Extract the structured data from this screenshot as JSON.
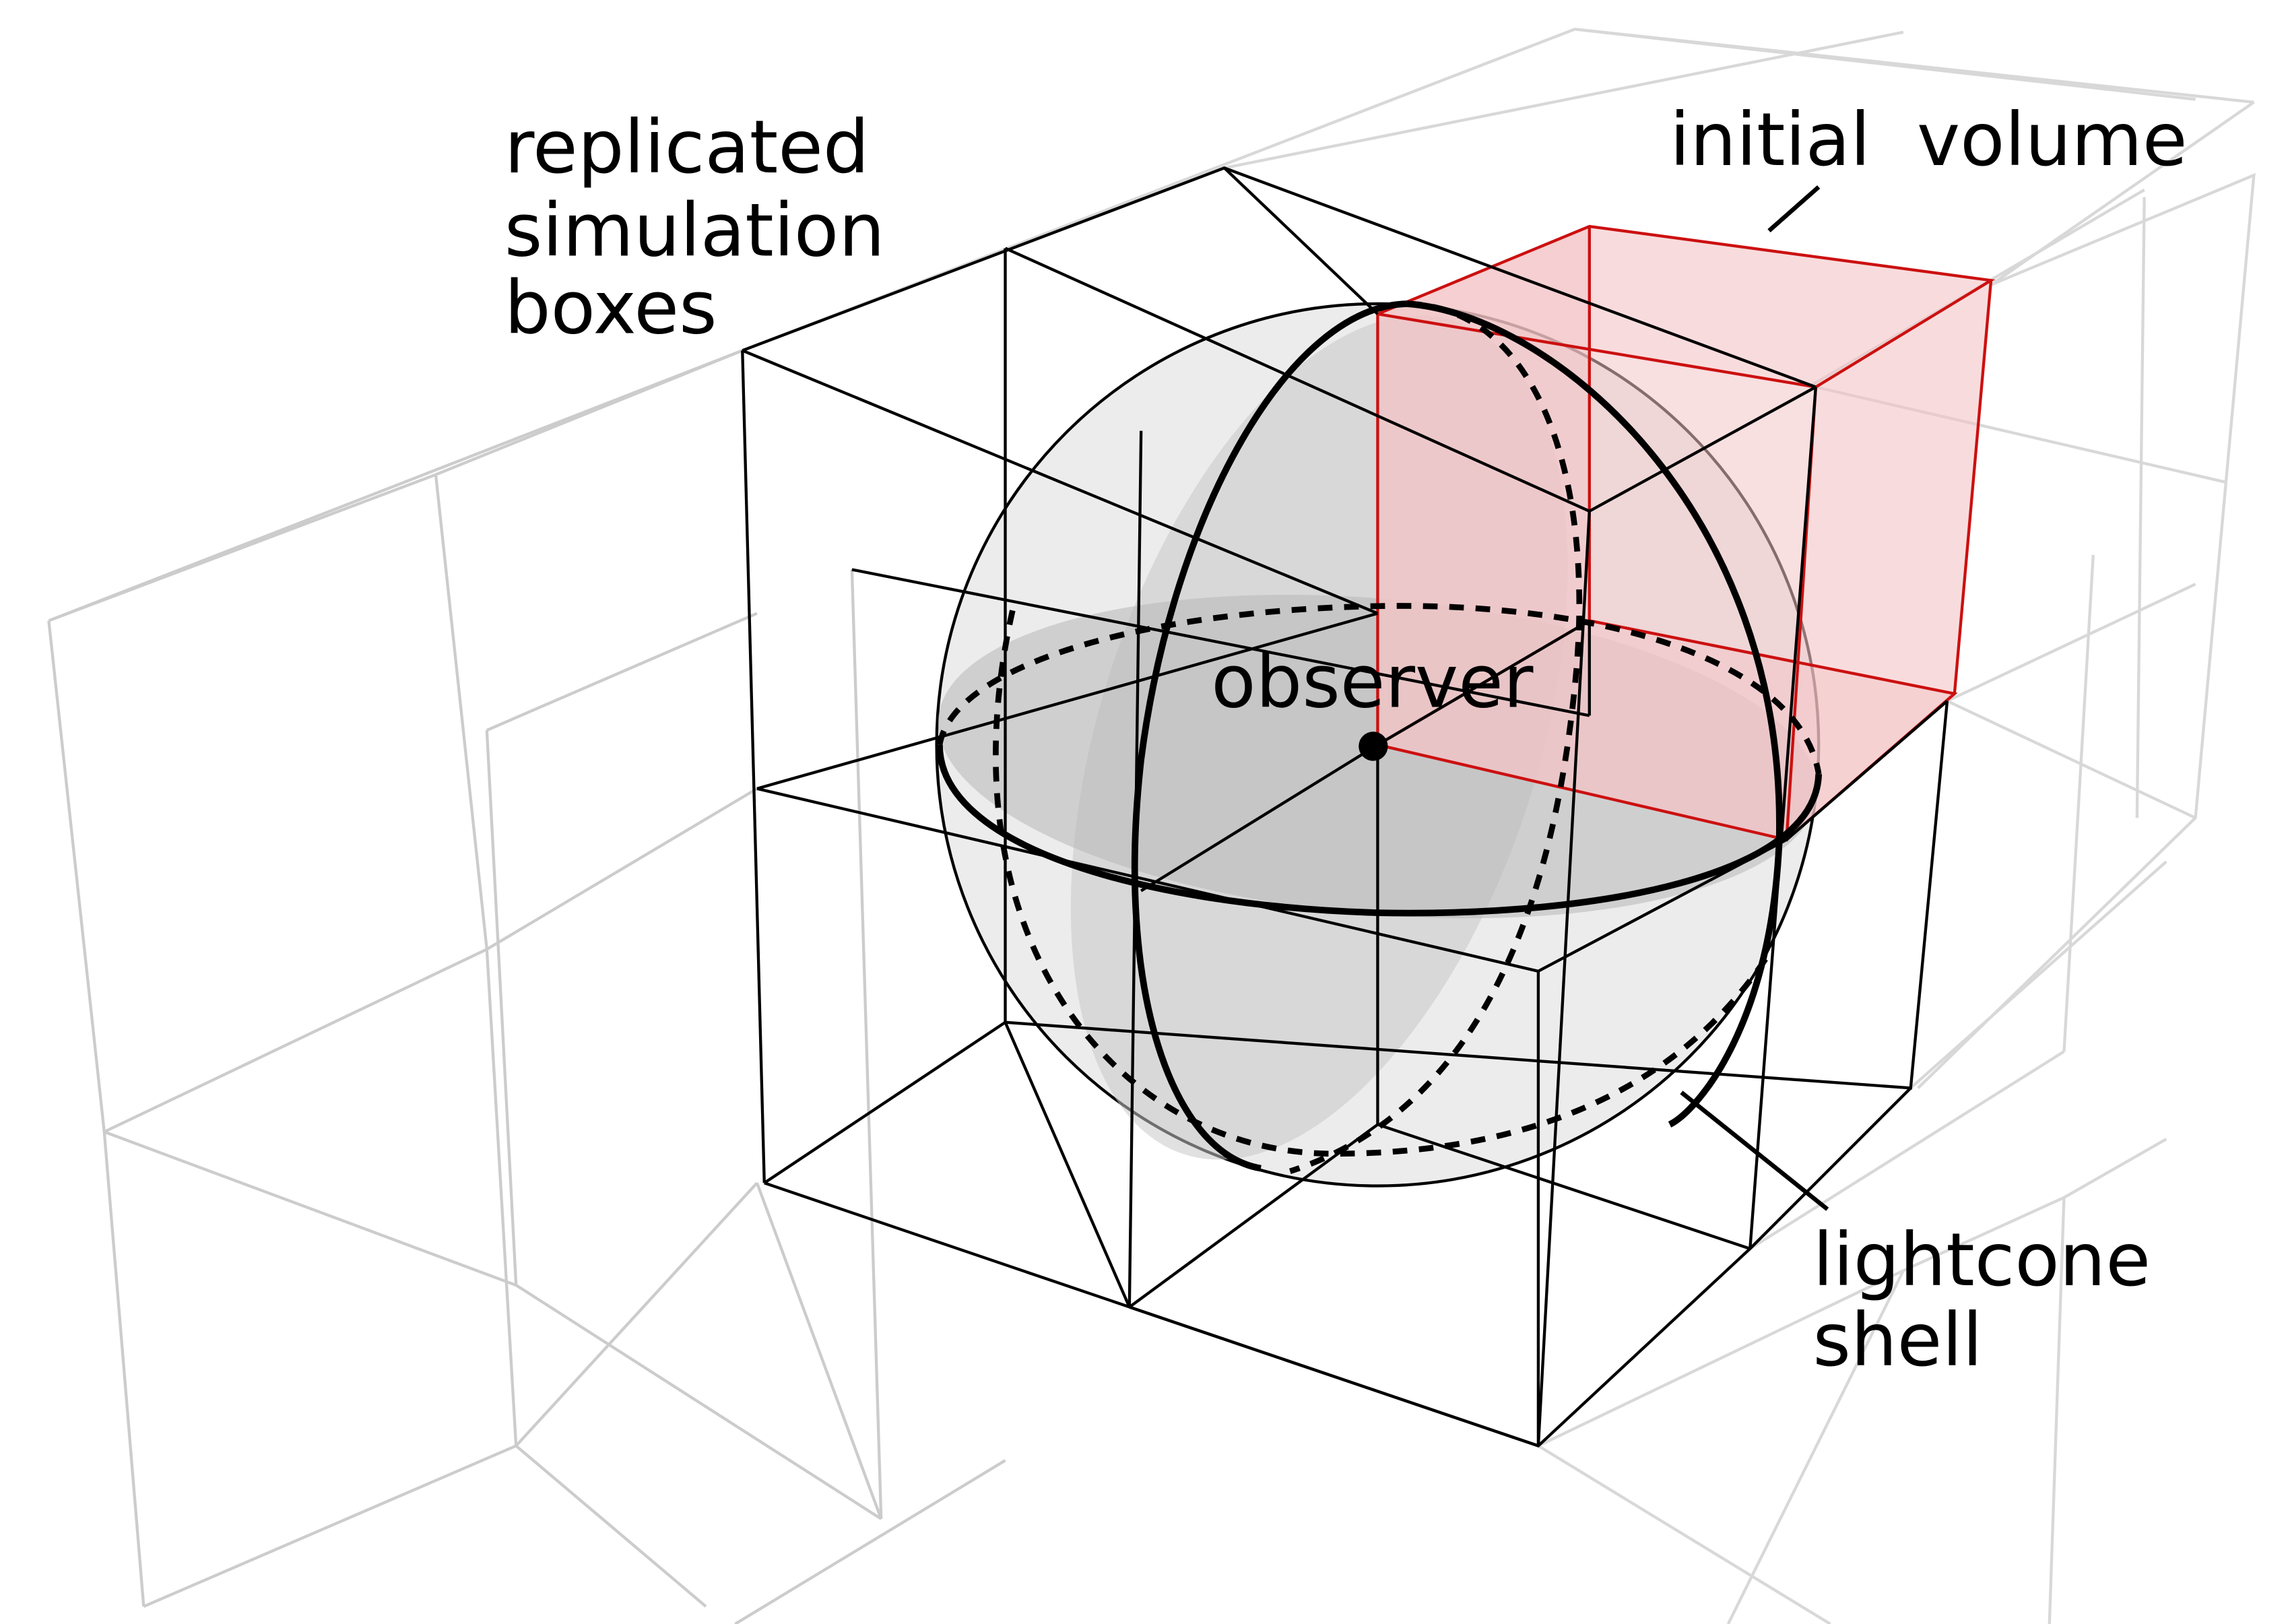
{
  "labels": {
    "replicated_line1": "replicated",
    "replicated_line2": "simulation",
    "replicated_line3": "boxes",
    "initial_volume": "initial  volume",
    "observer": "observer",
    "lightcone_line1": "lightcone",
    "lightcone_line2": "shell"
  },
  "colors": {
    "box_edges": "#000000",
    "faded_box_edges": "#c8c8c8",
    "initial_volume_stroke": "#cc1010",
    "initial_volume_fill": "#f3c4c6",
    "sphere_fill": "#e6e6e6",
    "slice_fill": "#b4b4b4"
  }
}
